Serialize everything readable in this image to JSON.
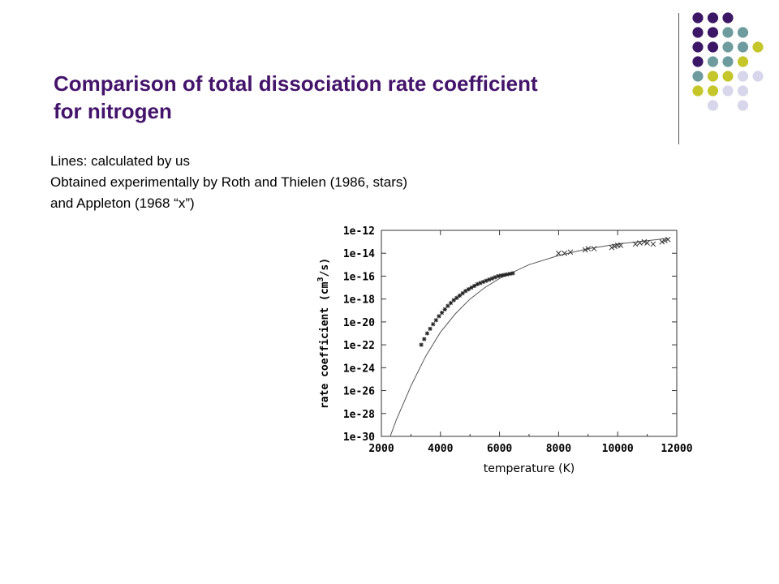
{
  "slide": {
    "title_line1": "Comparison of total dissociation rate coefficient",
    "title_line2": "for nitrogen",
    "notes": [
      "Lines: calculated by us",
      "Obtained experimentally by Roth and Thielen (1986, stars)",
      "and Appleton (1968 “x”)"
    ]
  },
  "colors": {
    "title": "#44146b",
    "dot_purple": "#3c1766",
    "dot_teal": "#6e9c9e",
    "dot_yellow": "#c4c62a",
    "dot_lavender": "#d7d6ea"
  },
  "chart_data": {
    "type": "scatter",
    "xlabel": "temperature (K)",
    "ylabel": "rate coefficient (cm³/s)",
    "xlim": [
      2000,
      12000
    ],
    "ylim_log10": [
      -30,
      -12
    ],
    "log_y": true,
    "x_ticks": [
      "2000",
      "4000",
      "6000",
      "8000",
      "10000",
      "12000"
    ],
    "y_ticks": [
      "1e-12",
      "1e-14",
      "1e-16",
      "1e-18",
      "1e-20",
      "1e-22",
      "1e-24",
      "1e-26",
      "1e-28",
      "1e-30"
    ],
    "grid": false,
    "series": [
      {
        "marker": "line",
        "x": [
          2300,
          2500,
          3000,
          3500,
          4000,
          4500,
          5000,
          5500,
          6000,
          6500,
          7000,
          8000,
          9000,
          10000,
          11000,
          11700
        ],
        "y_log10": [
          -30.0,
          -28.6,
          -25.6,
          -23.0,
          -20.9,
          -19.3,
          -18.0,
          -17.0,
          -16.2,
          -15.6,
          -15.0,
          -14.2,
          -13.6,
          -13.2,
          -12.9,
          -12.7
        ]
      },
      {
        "marker": "star",
        "x": [
          3350,
          3450,
          3550,
          3650,
          3750,
          3850,
          3950,
          4050,
          4150,
          4250,
          4350,
          4450,
          4550,
          4650,
          4750,
          4850,
          4950,
          5050,
          5150,
          5250,
          5350,
          5450,
          5550,
          5650,
          5750,
          5850,
          5950,
          6050,
          6150,
          6250,
          6350,
          6450
        ],
        "y_log10": [
          -22.0,
          -21.5,
          -21.0,
          -20.6,
          -20.2,
          -19.85,
          -19.5,
          -19.2,
          -18.9,
          -18.6,
          -18.35,
          -18.1,
          -17.9,
          -17.7,
          -17.5,
          -17.3,
          -17.15,
          -17.0,
          -16.85,
          -16.7,
          -16.6,
          -16.5,
          -16.4,
          -16.3,
          -16.2,
          -16.1,
          -16.0,
          -15.95,
          -15.9,
          -15.85,
          -15.8,
          -15.75
        ]
      },
      {
        "marker": "x",
        "x": [
          8000,
          8200,
          8400,
          8900,
          9000,
          9200,
          9800,
          9900,
          10000,
          10100,
          10600,
          10750,
          10900,
          11000,
          11200,
          11500,
          11600,
          11700
        ],
        "y_log10": [
          -14.0,
          -14.0,
          -13.9,
          -13.7,
          -13.6,
          -13.6,
          -13.5,
          -13.4,
          -13.3,
          -13.3,
          -13.2,
          -13.1,
          -13.0,
          -13.1,
          -13.2,
          -13.0,
          -12.9,
          -12.8
        ]
      }
    ]
  }
}
